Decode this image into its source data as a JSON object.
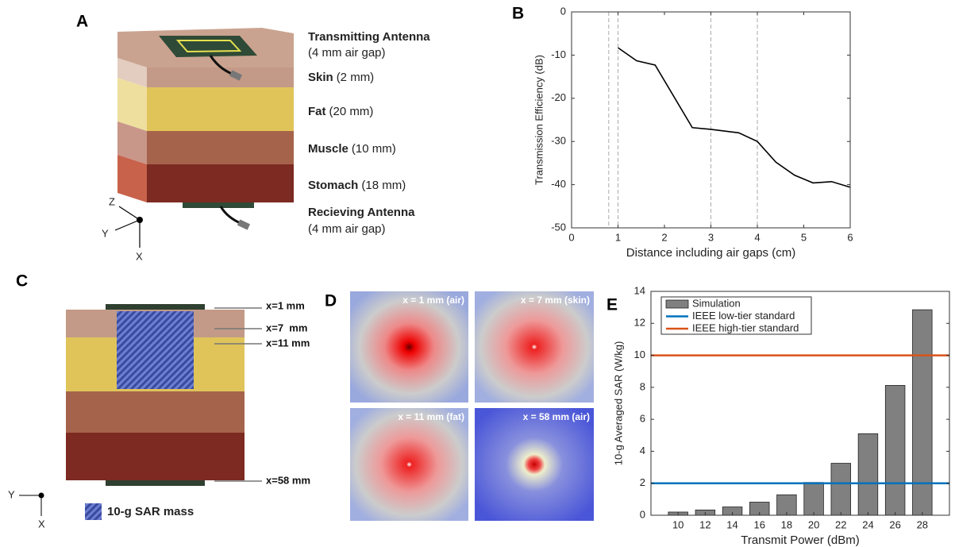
{
  "panels": {
    "A": {
      "letter": "A",
      "layers": [
        {
          "name": "Transmitting Antenna",
          "detail": "(4 mm air gap)"
        },
        {
          "name": "Skin",
          "detail": "(2 mm)"
        },
        {
          "name": "Fat",
          "detail": "(20 mm)"
        },
        {
          "name": "Muscle",
          "detail": "(10 mm)"
        },
        {
          "name": "Stomach",
          "detail": "(18 mm)"
        },
        {
          "name": "Recieving Antenna",
          "detail": "(4 mm air gap)"
        }
      ],
      "axes": [
        "Z",
        "Y",
        "X"
      ]
    },
    "C": {
      "letter": "C",
      "planes": [
        "x=1 mm",
        "x=7  mm",
        "x=11 mm",
        "x=58 mm"
      ],
      "legend": "10-g SAR mass",
      "axes": [
        "Y",
        "X"
      ]
    },
    "D": {
      "letter": "D",
      "maps": [
        "x = 1 mm (air)",
        "x = 7 mm (skin)",
        "x = 11 mm (fat)",
        "x = 58 mm (air)"
      ]
    }
  },
  "chart_data": [
    {
      "type": "line",
      "letter": "B",
      "xlabel": "Distance including air gaps (cm)",
      "ylabel": "Transmission Efficiency (dB)",
      "x": [
        1,
        1.4,
        1.8,
        2.6,
        3,
        3.6,
        4,
        4.4,
        4.8,
        5.2,
        5.6,
        6
      ],
      "series": [
        {
          "color": "#000000",
          "values": [
            -8.3,
            -11.3,
            -12.3,
            -26.8,
            -27.2,
            -28,
            -30,
            -34.8,
            -37.8,
            -39.6,
            -39.3,
            -40.6
          ]
        }
      ],
      "vlines": [
        0.8,
        1,
        3,
        4
      ],
      "xlim": [
        0,
        6
      ],
      "ylim": [
        -50,
        0
      ],
      "xticks": [
        0,
        1,
        2,
        3,
        4,
        5,
        6
      ],
      "yticks": [
        -50,
        -40,
        -30,
        -20,
        -10,
        0
      ]
    },
    {
      "type": "bar",
      "letter": "E",
      "xlabel": "Transmit Power (dBm)",
      "ylabel": "10-g Averaged SAR (W/kg)",
      "x": [
        10,
        12,
        14,
        16,
        18,
        20,
        22,
        24,
        26,
        28
      ],
      "series": [
        {
          "name": "Simulation",
          "color": "#808080",
          "values": [
            0.2,
            0.33,
            0.52,
            0.82,
            1.28,
            2.05,
            3.25,
            5.1,
            8.12,
            12.85
          ]
        }
      ],
      "hlines": [
        {
          "name": "IEEE low-tier standard",
          "color": "#0072bd",
          "value": 2
        },
        {
          "name": "IEEE high-tier standard",
          "color": "#d95319",
          "value": 10
        }
      ],
      "legend": "upper left",
      "xlim": [
        8,
        30
      ],
      "ylim": [
        0,
        14
      ],
      "xticks": [
        10,
        12,
        14,
        16,
        18,
        20,
        22,
        24,
        26,
        28
      ],
      "yticks": [
        0,
        2,
        4,
        6,
        8,
        10,
        12,
        14
      ]
    }
  ]
}
